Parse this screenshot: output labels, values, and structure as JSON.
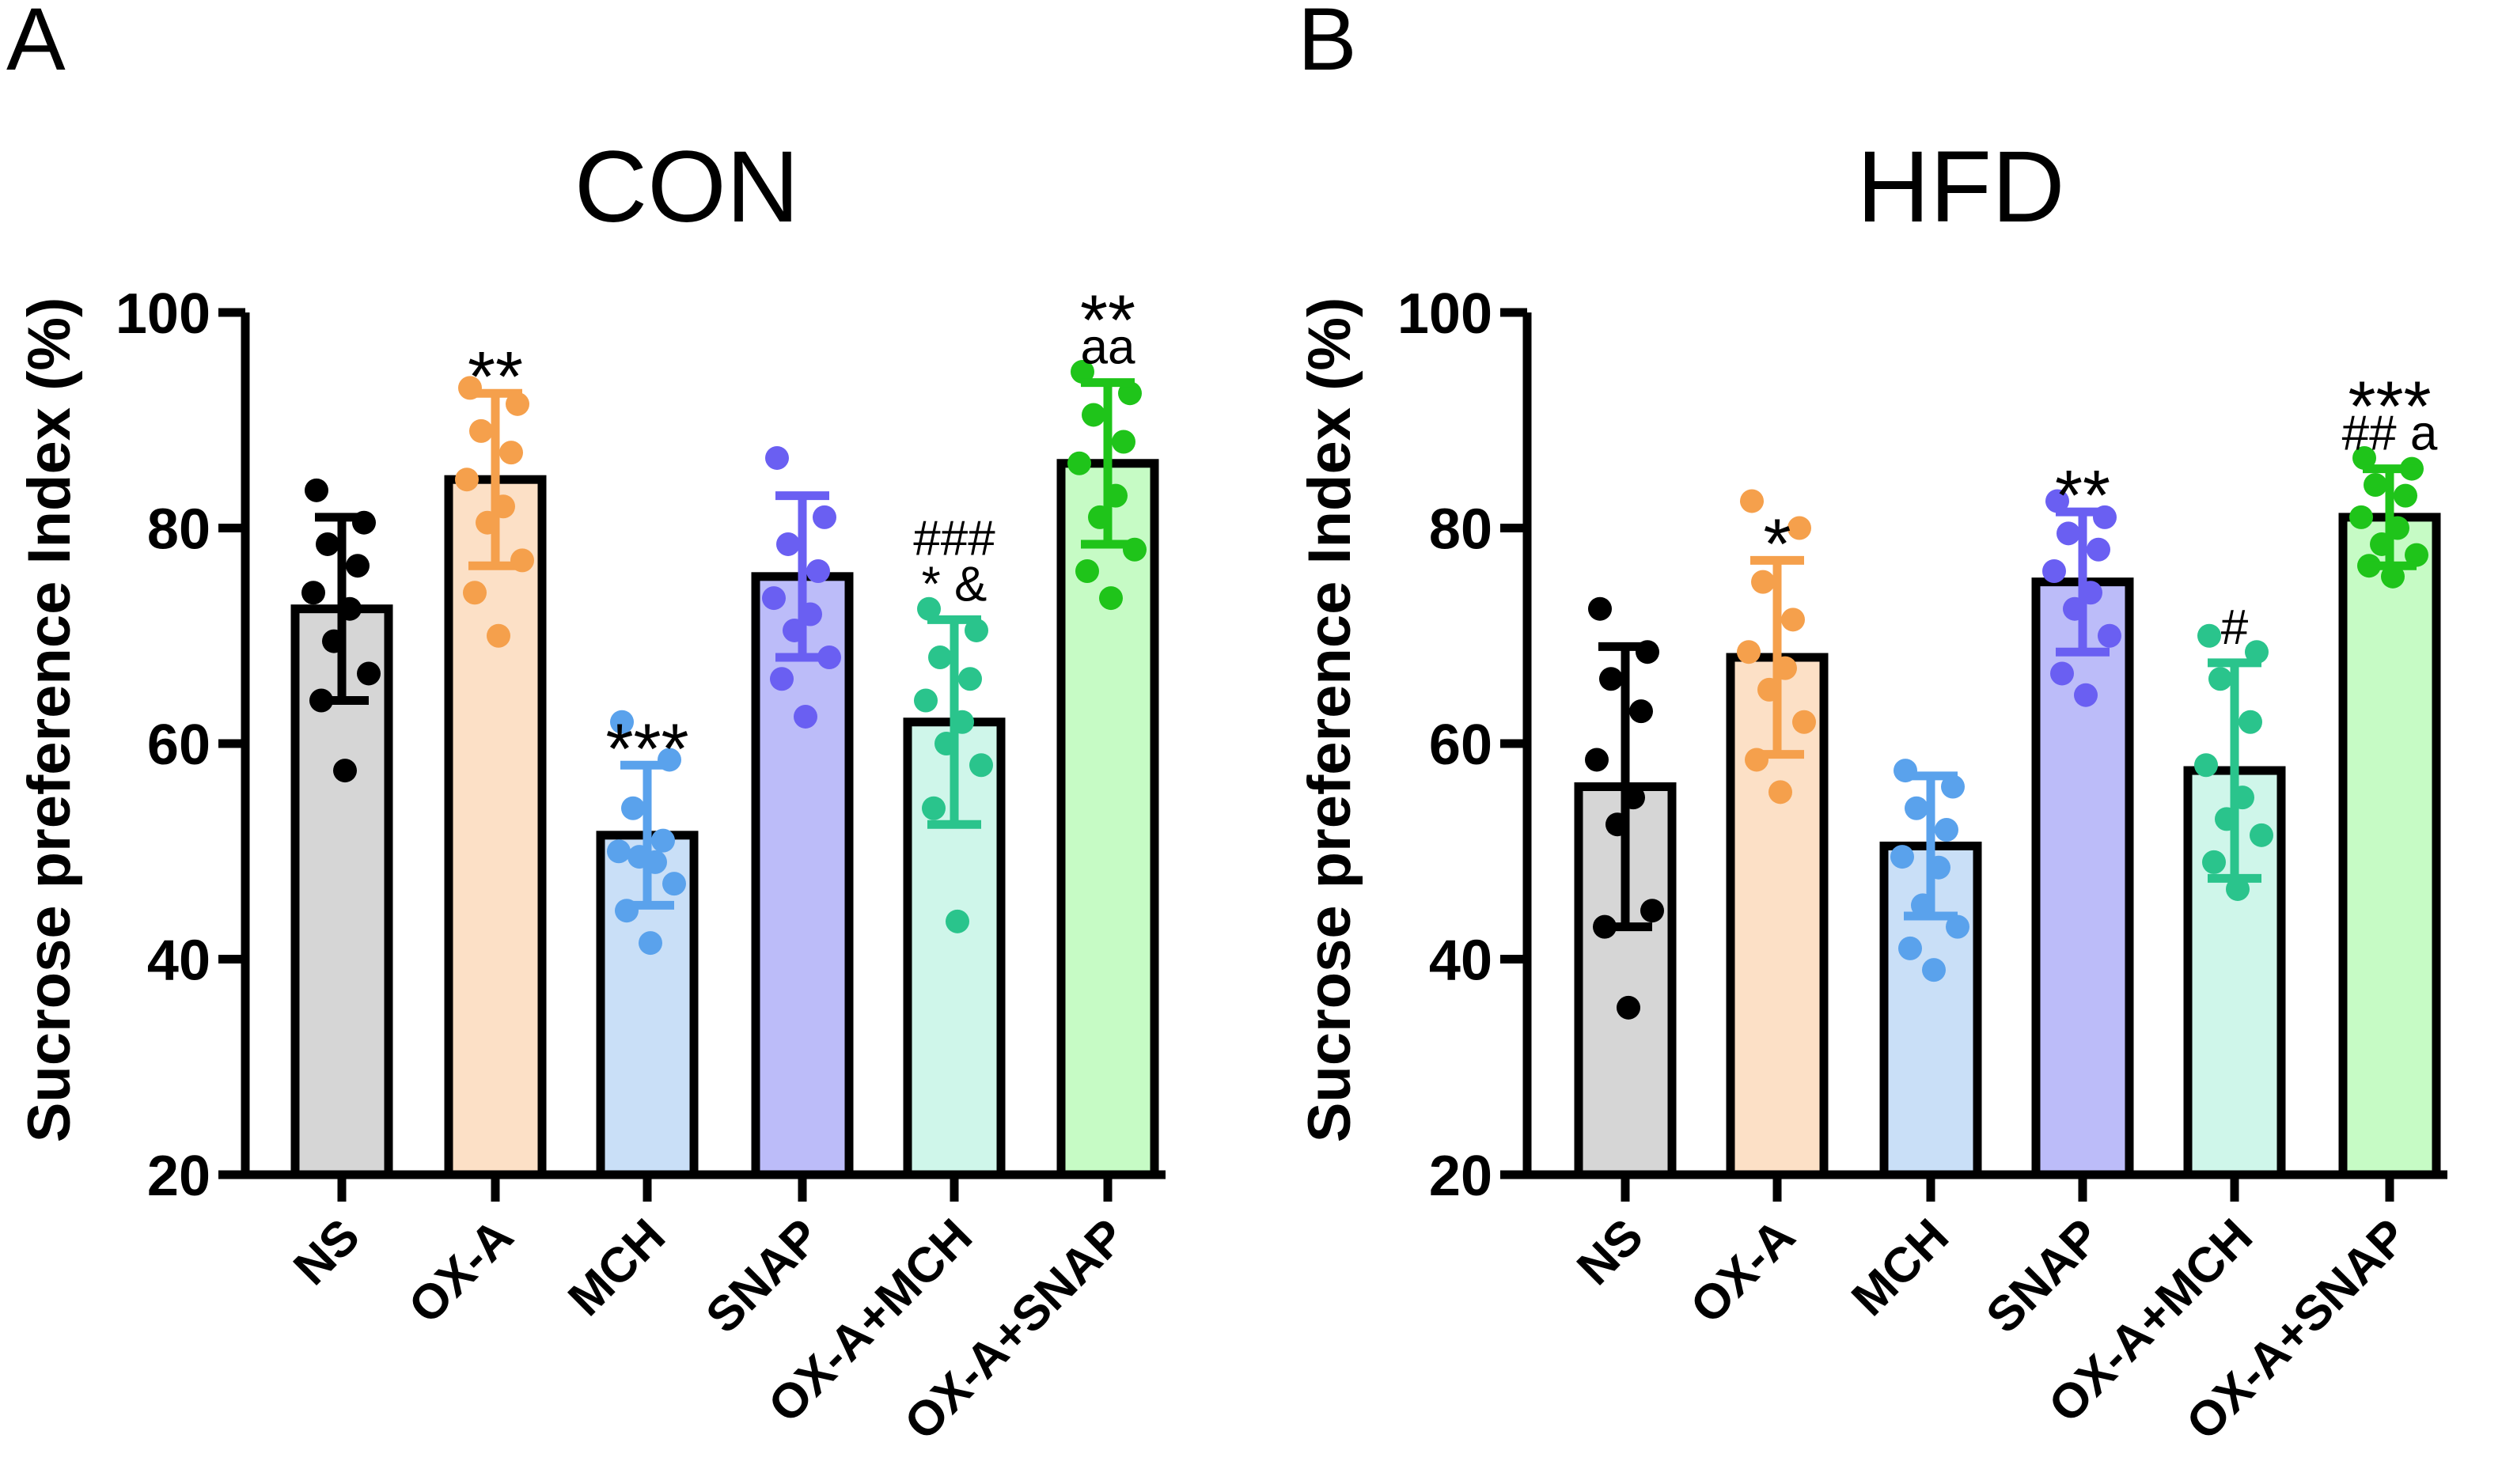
{
  "chart_data": [
    {
      "type": "bar",
      "panel_label": "A",
      "title": "CON",
      "ylabel": "Sucrose preference Index (%)",
      "ylim": [
        20,
        100
      ],
      "yticks": [
        "20",
        "40",
        "60",
        "80",
        "100"
      ],
      "categories": [
        "NS",
        "OX-A",
        "MCH",
        "SNAP",
        "OX-A+MCH",
        "OX-A+SNAP"
      ],
      "values": [
        72.5,
        84.5,
        51.5,
        75.5,
        62,
        86
      ],
      "sd": [
        8.5,
        8,
        6.5,
        7.5,
        9.5,
        7.5
      ],
      "colors": {
        "fill": [
          "#d6d6d6",
          "#fce0c6",
          "#c9dff7",
          "#bcbcf9",
          "#cff6ea",
          "#c6fbc5"
        ],
        "point": [
          "#000000",
          "#f5a04c",
          "#5aa2ec",
          "#6a5ff2",
          "#2ac48c",
          "#1fc41a"
        ]
      },
      "points": [
        [
          83.5,
          80.5,
          78.5,
          76.5,
          74,
          72.5,
          69.5,
          66.5,
          64,
          57.5
        ],
        [
          93,
          91.5,
          89,
          87,
          84.5,
          82,
          80.5,
          77,
          74,
          70
        ],
        [
          62,
          58.5,
          54,
          51,
          50,
          49,
          49.5,
          47,
          44.5,
          41.5
        ],
        [
          86.5,
          81,
          78.5,
          76,
          73.5,
          72,
          70.5,
          68,
          66,
          62.5
        ],
        [
          72.5,
          70.5,
          68,
          66,
          64,
          62,
          60,
          58,
          54,
          43.5
        ],
        [
          94.5,
          92.5,
          90.5,
          88,
          86,
          83,
          81,
          78,
          76,
          73.5
        ]
      ],
      "annotations": [
        [],
        [
          "**"
        ],
        [
          "***"
        ],
        [],
        [
          "###",
          "* &"
        ],
        [
          "**",
          "aa"
        ]
      ]
    },
    {
      "type": "bar",
      "panel_label": "B",
      "title": "HFD",
      "ylabel": "Sucrose preference Index (%)",
      "ylim": [
        20,
        100
      ],
      "yticks": [
        "20",
        "40",
        "60",
        "80",
        "100"
      ],
      "categories": [
        "NS",
        "OX-A",
        "MCH",
        "SNAP",
        "OX-A+MCH",
        "OX-A+SNAP"
      ],
      "values": [
        56,
        68,
        50.5,
        75,
        57.5,
        81
      ],
      "sd": [
        13,
        9,
        6.5,
        6.5,
        10,
        4.5
      ],
      "colors": {
        "fill": [
          "#d6d6d6",
          "#fce0c6",
          "#c9dff7",
          "#bcbcf9",
          "#cff6ea",
          "#c6fbc5"
        ],
        "point": [
          "#000000",
          "#f5a04c",
          "#5aa2ec",
          "#6a5ff2",
          "#2ac48c",
          "#1fc41a"
        ]
      },
      "points": [
        [
          72.5,
          68.5,
          66,
          63,
          58.5,
          55,
          52.5,
          44.5,
          43,
          35.5
        ],
        [
          82.5,
          80,
          75,
          71.5,
          68.5,
          67,
          65,
          62,
          58.5,
          55.5
        ],
        [
          57.5,
          56,
          54,
          52,
          49.5,
          48.5,
          45,
          43,
          41,
          39
        ],
        [
          82.5,
          81,
          79.5,
          78,
          76,
          74,
          72.5,
          70,
          66.5,
          64.5
        ],
        [
          70,
          68.5,
          66,
          62,
          58,
          55,
          53,
          51.5,
          49,
          46.5
        ],
        [
          86.5,
          85.5,
          84,
          83,
          81,
          80,
          78.5,
          77.5,
          76.5,
          75.5
        ]
      ],
      "annotations": [
        [],
        [
          "*"
        ],
        [],
        [
          "**"
        ],
        [
          "#"
        ],
        [
          "***",
          "## a"
        ]
      ]
    }
  ]
}
